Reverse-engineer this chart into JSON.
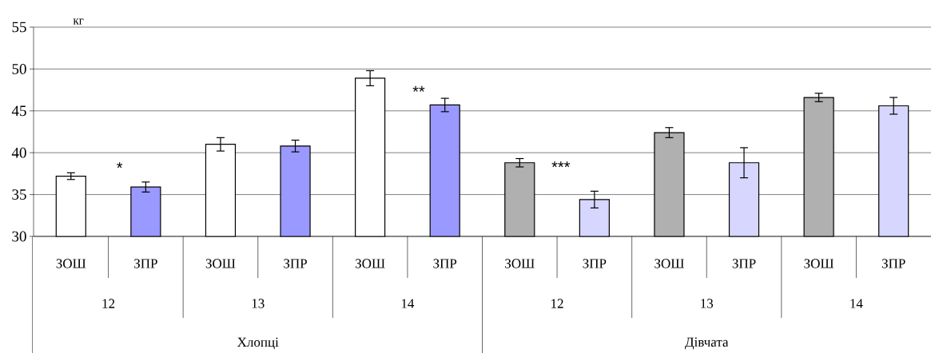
{
  "chart_data": {
    "type": "bar",
    "ylabel": "кг",
    "categories": [
      "ЗОШ",
      "ЗПР",
      "ЗОШ",
      "ЗПР",
      "ЗОШ",
      "ЗПР",
      "ЗОШ",
      "ЗПР",
      "ЗОШ",
      "ЗПР",
      "ЗОШ",
      "ЗПР"
    ],
    "values": [
      37.2,
      35.9,
      41.0,
      40.8,
      48.9,
      45.7,
      38.8,
      34.4,
      42.4,
      38.8,
      46.6,
      45.6
    ],
    "errors": [
      0.4,
      0.6,
      0.8,
      0.7,
      0.9,
      0.8,
      0.5,
      1.0,
      0.6,
      1.8,
      0.5,
      1.0
    ],
    "colors": [
      "#ffffff",
      "#9999ff",
      "#ffffff",
      "#9999ff",
      "#ffffff",
      "#9999ff",
      "#b0b0b0",
      "#d6d6ff",
      "#b0b0b0",
      "#d6d6ff",
      "#b0b0b0",
      "#d6d6ff"
    ],
    "ylim": [
      30,
      55
    ],
    "yticks": [
      30,
      35,
      40,
      45,
      50,
      55
    ],
    "grid": "y",
    "annotations": [
      "*",
      "**",
      "***",
      "12",
      "13",
      "14",
      "12",
      "13",
      "14",
      "Хлопці",
      "Дівчата"
    ]
  }
}
